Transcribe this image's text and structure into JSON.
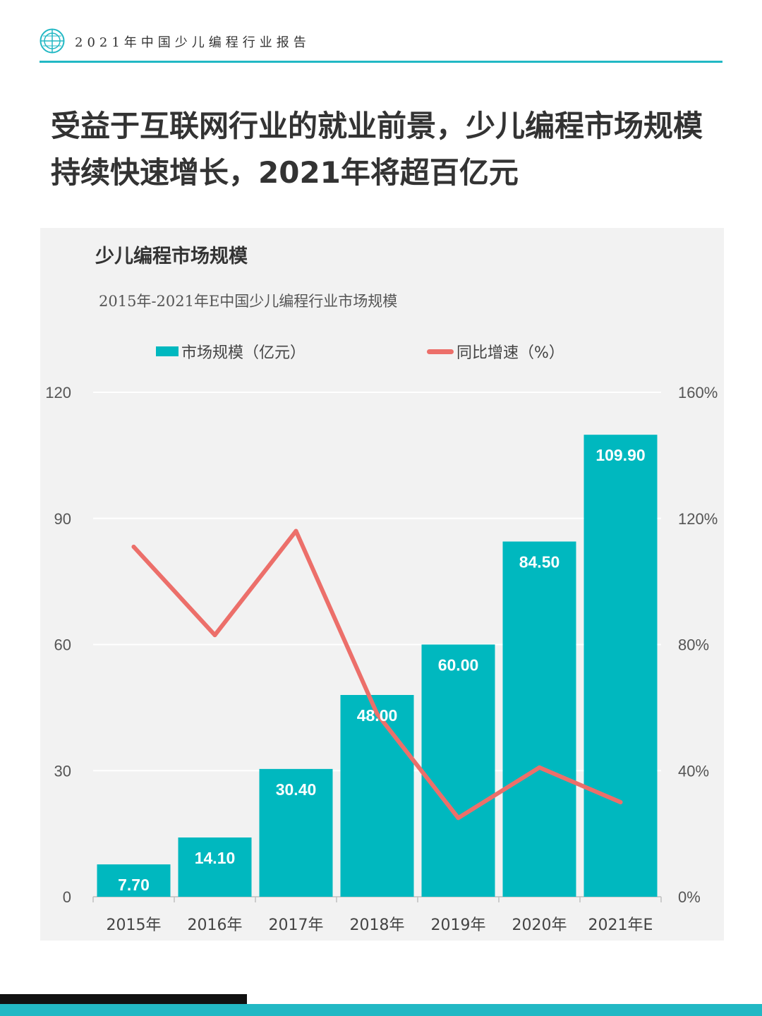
{
  "header": {
    "report_title": "2021年中国少儿编程行业报告",
    "logo_icon": "globe-logo-icon"
  },
  "headline": "受益于互联网行业的就业前景，少儿编程市场规模持续快速增长，2021年将超百亿元",
  "colors": {
    "accent": "#22b8c4",
    "bar": "#00b8bf",
    "line": "#ec6f6a",
    "panel": "#f2f2f2"
  },
  "chart_data": {
    "type": "bar",
    "title": "少儿编程市场规模",
    "subtitle": "2015年-2021年E中国少儿编程行业市场规模",
    "categories": [
      "2015年",
      "2016年",
      "2017年",
      "2018年",
      "2019年",
      "2020年",
      "2021年E"
    ],
    "series": [
      {
        "name": "市场规模（亿元）",
        "type": "bar",
        "axis": "left",
        "values": [
          7.7,
          14.1,
          30.4,
          48.0,
          60.0,
          84.5,
          109.9
        ],
        "labels": [
          "7.70",
          "14.10",
          "30.40",
          "48.00",
          "60.00",
          "84.50",
          "109.90"
        ]
      },
      {
        "name": "同比增速（%）",
        "type": "line",
        "axis": "right",
        "values": [
          111,
          83,
          116,
          58,
          25,
          41,
          30
        ]
      }
    ],
    "y_left": {
      "range": [
        0,
        120
      ],
      "ticks": [
        0,
        30,
        60,
        90,
        120
      ],
      "tick_labels": [
        "0",
        "30",
        "60",
        "90",
        "120"
      ]
    },
    "y_right": {
      "range": [
        0,
        160
      ],
      "ticks": [
        0,
        40,
        80,
        120,
        160
      ],
      "tick_labels": [
        "0%",
        "40%",
        "80%",
        "120%",
        "160%"
      ]
    },
    "grid": true,
    "legend_position": "top"
  }
}
